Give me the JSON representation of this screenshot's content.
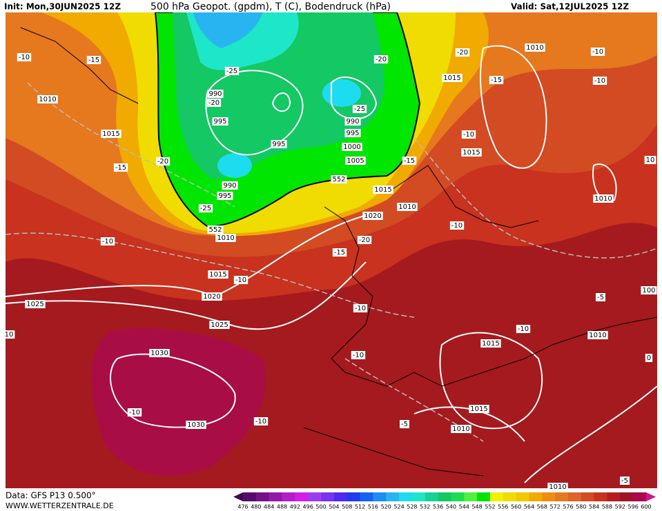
{
  "header": {
    "init": "Init: Mon,30JUN2025 12Z",
    "title": "500 hPa Geopot. (gpdm), T (C), Bodendruck (hPa)",
    "valid": "Valid: Sat,12JUL2025 12Z"
  },
  "footer": {
    "data": "Data: GFS P13 0.500°",
    "site": "WWW.WETTERZENTRALE.DE"
  },
  "colorbar": {
    "labels": [
      "476",
      "480",
      "484",
      "488",
      "492",
      "496",
      "500",
      "504",
      "508",
      "512",
      "516",
      "520",
      "524",
      "528",
      "532",
      "536",
      "540",
      "544",
      "548",
      "552",
      "556",
      "560",
      "564",
      "568",
      "572",
      "576",
      "580",
      "584",
      "588",
      "592",
      "596",
      "600"
    ],
    "colors": [
      "#3c0a4a",
      "#5a0a6e",
      "#78108c",
      "#9618aa",
      "#b41ec8",
      "#d21ee6",
      "#a03cf0",
      "#7832f0",
      "#5028f0",
      "#1e3cf0",
      "#1464f0",
      "#1e8cf0",
      "#28b4f0",
      "#1edcf0",
      "#1ee6c8",
      "#14d296",
      "#14c864",
      "#1edc50",
      "#50f03c",
      "#00e600",
      "#f0f000",
      "#f0dc00",
      "#f0c800",
      "#f0aa00",
      "#f08c14",
      "#e6781e",
      "#dc6428",
      "#d24b23",
      "#c8321e",
      "#b41e1e",
      "#a01428",
      "#aa0a50",
      "#d2148c"
    ]
  },
  "map": {
    "labels": [
      "-10",
      "-15",
      "1010",
      "1015",
      "-15",
      "-20",
      "-25",
      "990",
      "-20",
      "995",
      "995",
      "990",
      "995",
      "-25",
      "552",
      "1010",
      "-10",
      "1015",
      "-10",
      "1020",
      "1025",
      "1025",
      "1030",
      "-10",
      "1030",
      "-10",
      "10",
      "-20",
      "-25",
      "990",
      "995",
      "1000",
      "1005",
      "552",
      "1015",
      "1020",
      "1010",
      "-15",
      "-20",
      "-15",
      "-10",
      "-10",
      "-20",
      "1015",
      "-15",
      "-10",
      "1015",
      "-10",
      "1010",
      "-10",
      "-10",
      "10",
      "1010",
      "-5",
      "100",
      "1010",
      "-10",
      "1015",
      "0",
      "-5",
      "1015",
      "1010",
      "1010",
      "-5"
    ]
  }
}
